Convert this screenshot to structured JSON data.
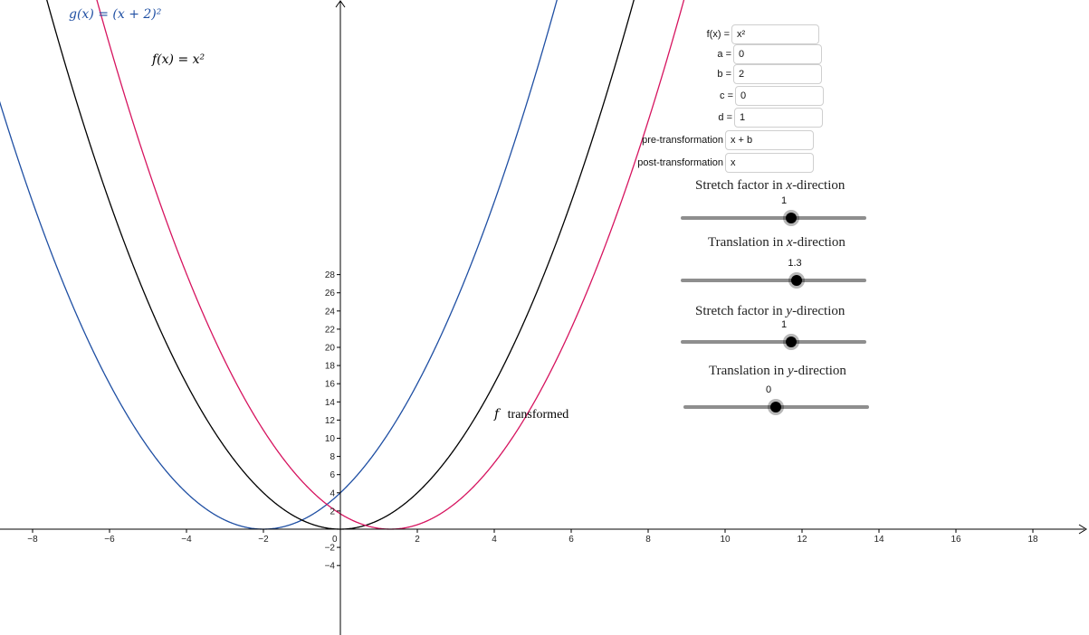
{
  "graph": {
    "x_ticks": [
      "−8",
      "−6",
      "−4",
      "−2",
      "0",
      "2",
      "4",
      "6",
      "8",
      "10",
      "12",
      "14",
      "16",
      "18"
    ],
    "y_ticks": [
      "−4",
      "−2",
      "2",
      "4",
      "6",
      "8",
      "10",
      "12",
      "14",
      "16",
      "18",
      "20",
      "22",
      "24",
      "26",
      "28"
    ],
    "curves": [
      {
        "name": "g",
        "shift": -2,
        "color": "#1f4fa3"
      },
      {
        "name": "f",
        "shift": 0,
        "color": "#000000"
      },
      {
        "name": "f transformed",
        "shift": 1.3,
        "color": "#d6145f"
      }
    ],
    "labels": {
      "g_label": "g(x) = (x + 2)²",
      "f_label": "f(x) = x²",
      "ft_f": "f",
      "ft_rest": "transformed"
    }
  },
  "fields": [
    {
      "label": "f(x) =",
      "value": "x²"
    },
    {
      "label": "a =",
      "value": "0"
    },
    {
      "label": "b =",
      "value": "2"
    },
    {
      "label": "c =",
      "value": "0"
    },
    {
      "label": "d =",
      "value": "1"
    },
    {
      "label": "pre-transformation",
      "value": "x + b"
    },
    {
      "label": "post-transformation",
      "value": "x"
    }
  ],
  "sliders": [
    {
      "title": "Stretch factor in x-direction",
      "value": "1"
    },
    {
      "title": "Translation in x-direction",
      "value": "1.3"
    },
    {
      "title": "Stretch factor in y-direction",
      "value": "1"
    },
    {
      "title": "Translation in y-direction",
      "value": "0"
    }
  ],
  "colors": {
    "axis": "#000000",
    "slider_track": "#8e8e8e",
    "knob": "#000000"
  }
}
